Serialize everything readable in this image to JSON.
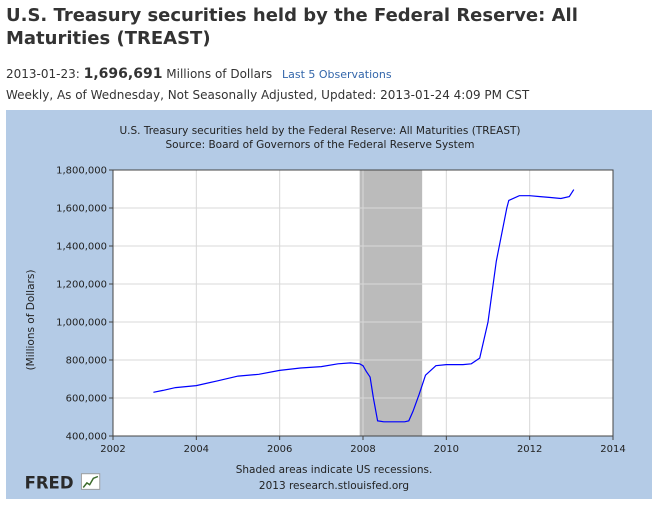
{
  "header": {
    "title": "U.S. Treasury securities held by the Federal Reserve: All Maturities (TREAST)",
    "obs_date": "2013-01-23:",
    "obs_value": "1,696,691",
    "obs_unit": "Millions of Dollars",
    "obs_link": "Last 5 Observations",
    "meta": "Weekly, As of Wednesday, Not Seasonally Adjusted, Updated: 2013-01-24 4:09 PM CST"
  },
  "logo": {
    "text": "FRED",
    "icon": "fred-chart-logo-icon"
  },
  "colors": {
    "series": "#0000ff",
    "recession": "#bbbbbb",
    "panel": "#b4cbe6"
  },
  "chart_data": {
    "type": "line",
    "title": "U.S. Treasury securities held by the Federal Reserve: All Maturities (TREAST)",
    "subtitle": "Source: Board of Governors of the Federal Reserve System",
    "xlabel": "",
    "ylabel": "(Millions of Dollars)",
    "xlim": [
      2002,
      2014
    ],
    "ylim": [
      400000,
      1800000
    ],
    "x_ticks": [
      2002,
      2004,
      2006,
      2008,
      2010,
      2012,
      2014
    ],
    "y_ticks": [
      400000,
      600000,
      800000,
      1000000,
      1200000,
      1400000,
      1600000,
      1800000
    ],
    "x_tick_labels": [
      "2002",
      "2004",
      "2006",
      "2008",
      "2010",
      "2012",
      "2014"
    ],
    "y_tick_labels": [
      "400,000",
      "600,000",
      "800,000",
      "1,000,000",
      "1,200,000",
      "1,400,000",
      "1,600,000",
      "1,800,000"
    ],
    "grid": true,
    "recessions": [
      [
        2007.92,
        2009.42
      ]
    ],
    "footnote": "Shaded areas indicate US recessions.",
    "credit": "2013 research.stlouisfed.org",
    "series": [
      {
        "x": [
          2002.97,
          2003.2,
          2003.5,
          2004.0,
          2004.5,
          2005.0,
          2005.5,
          2006.0,
          2006.5,
          2007.0,
          2007.4,
          2007.7,
          2007.92,
          2008.0,
          2008.08,
          2008.17,
          2008.25,
          2008.35,
          2008.5,
          2008.75,
          2009.0,
          2009.1,
          2009.2,
          2009.35,
          2009.5,
          2009.75,
          2010.0,
          2010.4,
          2010.6,
          2010.8,
          2011.0,
          2011.2,
          2011.45,
          2011.5,
          2011.75,
          2012.0,
          2012.25,
          2012.5,
          2012.75,
          2012.95,
          2013.06
        ],
        "y": [
          630000,
          640000,
          655000,
          665000,
          690000,
          715000,
          725000,
          745000,
          758000,
          765000,
          780000,
          785000,
          780000,
          770000,
          740000,
          710000,
          600000,
          480000,
          475000,
          475000,
          475000,
          480000,
          530000,
          620000,
          720000,
          770000,
          776000,
          776000,
          780000,
          810000,
          1000000,
          1320000,
          1600000,
          1640000,
          1665000,
          1665000,
          1660000,
          1655000,
          1650000,
          1660000,
          1696691
        ]
      }
    ]
  }
}
